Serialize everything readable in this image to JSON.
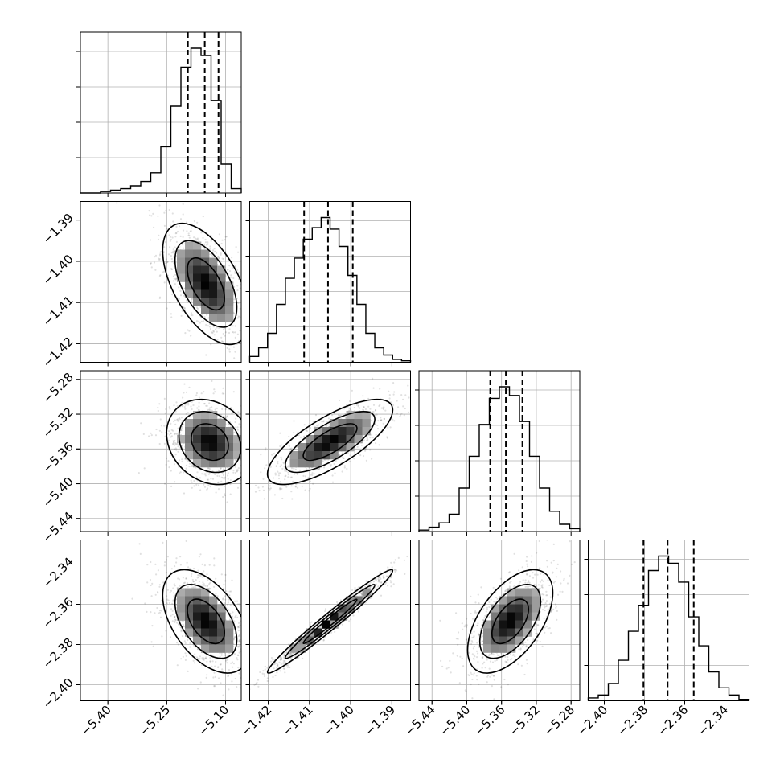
{
  "chart_data": {
    "type": "corner",
    "parameters": [
      {
        "ticks": [
          -5.4,
          -5.25,
          -5.1
        ],
        "tick_labels": [
          "−5.40",
          "−5.25",
          "−5.10"
        ],
        "range": [
          -5.47,
          -5.06
        ],
        "hist_counts": [
          0,
          0,
          0.01,
          0.02,
          0.03,
          0.05,
          0.08,
          0.14,
          0.32,
          0.6,
          0.87,
          1.0,
          0.95,
          0.64,
          0.2,
          0.03
        ],
        "quantiles": [
          -5.196,
          -5.153,
          -5.118
        ]
      },
      {
        "ticks": [
          -1.42,
          -1.41,
          -1.4,
          -1.39
        ],
        "tick_labels": [
          "−1.42",
          "−1.41",
          "−1.40",
          "−1.39"
        ],
        "range": [
          -1.4245,
          -1.3855
        ],
        "hist_counts": [
          0.04,
          0.1,
          0.2,
          0.4,
          0.58,
          0.72,
          0.85,
          0.93,
          1.0,
          0.92,
          0.8,
          0.6,
          0.4,
          0.2,
          0.1,
          0.05,
          0.02,
          0.01
        ],
        "quantiles": [
          -1.4113,
          -1.4055,
          -1.3995
        ]
      },
      {
        "ticks": [
          -5.44,
          -5.4,
          -5.36,
          -5.32,
          -5.28
        ],
        "tick_labels": [
          "−5.44",
          "−5.40",
          "−5.36",
          "−5.32",
          "−5.28"
        ],
        "range": [
          -5.455,
          -5.27
        ],
        "hist_counts": [
          0.01,
          0.03,
          0.06,
          0.12,
          0.3,
          0.52,
          0.74,
          0.92,
          1.0,
          0.94,
          0.76,
          0.52,
          0.3,
          0.14,
          0.05,
          0.02
        ],
        "quantiles": [
          -5.373,
          -5.355,
          -5.336
        ]
      },
      {
        "ticks": [
          -2.4,
          -2.38,
          -2.36,
          -2.34
        ],
        "tick_labels": [
          "−2.40",
          "−2.38",
          "−2.36",
          "−2.34"
        ],
        "range": [
          -2.408,
          -2.328
        ],
        "hist_counts": [
          0.02,
          0.04,
          0.12,
          0.28,
          0.48,
          0.66,
          0.9,
          1.0,
          0.95,
          0.82,
          0.58,
          0.38,
          0.2,
          0.09,
          0.04,
          0.01
        ],
        "quantiles": [
          -2.3805,
          -2.3685,
          -2.3555
        ]
      }
    ],
    "pairs": [
      {
        "x": 0,
        "y": 1,
        "mean": [
          -5.15,
          -1.4055
        ],
        "sd": [
          0.045,
          0.006
        ],
        "rho": -0.55
      },
      {
        "x": 0,
        "y": 2,
        "mean": [
          -5.14,
          -5.352
        ],
        "sd": [
          0.045,
          0.02
        ],
        "rho": -0.2
      },
      {
        "x": 1,
        "y": 2,
        "mean": [
          -1.405,
          -5.352
        ],
        "sd": [
          0.0062,
          0.02
        ],
        "rho": 0.75
      },
      {
        "x": 0,
        "y": 3,
        "mean": [
          -5.15,
          -2.3685
        ],
        "sd": [
          0.045,
          0.0105
        ],
        "rho": -0.5
      },
      {
        "x": 1,
        "y": 3,
        "mean": [
          -1.405,
          -2.3685
        ],
        "sd": [
          0.0062,
          0.0105
        ],
        "rho": 0.98
      },
      {
        "x": 2,
        "y": 3,
        "mean": [
          -5.35,
          -2.3685
        ],
        "sd": [
          0.02,
          0.0105
        ],
        "rho": 0.55
      }
    ],
    "grid": true,
    "colors": {
      "line": "#000000",
      "grid": "#b0b0b0",
      "points": "#000000"
    }
  }
}
